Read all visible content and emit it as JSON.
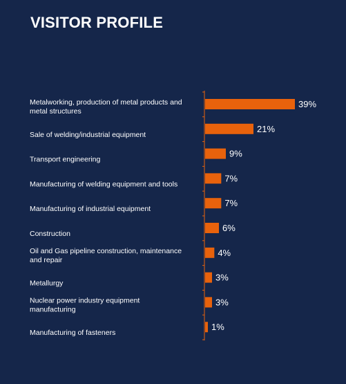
{
  "title": "VISITOR PROFILE",
  "colors": {
    "background": "#15264a",
    "bar": "#e8620c",
    "axis": "#e8620c",
    "text": "#ffffff"
  },
  "chart_data": {
    "type": "bar",
    "orientation": "horizontal",
    "categories": [
      [
        "Metalworking, production of metal products and",
        "metal structures"
      ],
      [
        "Sale of welding/industrial equipment"
      ],
      [
        "Transport engineering"
      ],
      [
        "Manufacturing of welding equipment and tools"
      ],
      [
        "Manufacturing of industrial equipment"
      ],
      [
        "Construction"
      ],
      [
        "Oil and Gas pipeline construction, maintenance",
        "and repair"
      ],
      [
        "Metallurgy"
      ],
      [
        "Nuclear power industry equipment",
        "manufacturing"
      ],
      [
        "Manufacturing of fasteners"
      ]
    ],
    "values": [
      39,
      21,
      9,
      7,
      7,
      6,
      4,
      3,
      3,
      1
    ],
    "value_labels": [
      "39%",
      "21%",
      "9%",
      "7%",
      "7%",
      "6%",
      "4%",
      "3%",
      "3%",
      "1%"
    ],
    "xlim": [
      0,
      39
    ],
    "grid": false,
    "legend": "none"
  }
}
